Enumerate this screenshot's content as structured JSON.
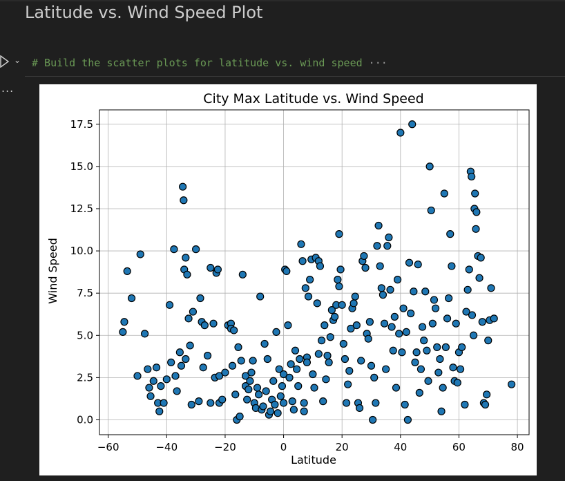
{
  "heading": "Latitude vs. Wind Speed Plot",
  "cell": {
    "code": "# Build the scatter plots for latitude vs. wind speed",
    "collapsed_marker": "···",
    "output_marker": "..."
  },
  "colors": {
    "marker_fill": "#1f77b4",
    "marker_edge": "#000000",
    "grid": "#b0b0b0",
    "code_comment": "#6a9955"
  },
  "chart_data": {
    "type": "scatter",
    "title": "City Max Latitude vs. Wind Speed",
    "xlabel": "Latitude",
    "ylabel": "Wind Speed",
    "xlim": [
      -63,
      84
    ],
    "ylim": [
      -0.88,
      18.35
    ],
    "xticks": [
      -60,
      -40,
      -20,
      0,
      20,
      40,
      60,
      80
    ],
    "xtick_labels": [
      "−60",
      "−40",
      "−20",
      "0",
      "20",
      "40",
      "60",
      "80"
    ],
    "yticks": [
      0.0,
      2.5,
      5.0,
      7.5,
      10.0,
      12.5,
      15.0,
      17.5
    ],
    "ytick_labels": [
      "0.0",
      "2.5",
      "5.0",
      "7.5",
      "10.0",
      "12.5",
      "15.0",
      "17.5"
    ],
    "grid": true,
    "points": [
      [
        -55,
        5.2
      ],
      [
        -54.5,
        5.8
      ],
      [
        -53.5,
        8.8
      ],
      [
        -52,
        7.2
      ],
      [
        -50,
        2.6
      ],
      [
        -49,
        9.8
      ],
      [
        -47.5,
        5.1
      ],
      [
        -46.5,
        3.0
      ],
      [
        -46,
        1.9
      ],
      [
        -45.5,
        1.4
      ],
      [
        -44.5,
        2.3
      ],
      [
        -43.5,
        3.1
      ],
      [
        -43,
        1.0
      ],
      [
        -42.5,
        0.5
      ],
      [
        -42,
        2.0
      ],
      [
        -41,
        1.0
      ],
      [
        -40,
        2.4
      ],
      [
        -39,
        6.8
      ],
      [
        -38.5,
        3.4
      ],
      [
        -37.5,
        10.1
      ],
      [
        -37,
        2.6
      ],
      [
        -36.5,
        1.7
      ],
      [
        -35.5,
        4.0
      ],
      [
        -35,
        3.2
      ],
      [
        -34.5,
        13.8
      ],
      [
        -34.2,
        13.0
      ],
      [
        -34,
        8.9
      ],
      [
        -33.5,
        9.6
      ],
      [
        -33,
        8.6
      ],
      [
        -33.5,
        3.6
      ],
      [
        -32.5,
        6.0
      ],
      [
        -32,
        4.4
      ],
      [
        -31.5,
        0.9
      ],
      [
        -31,
        6.4
      ],
      [
        -30,
        10.1
      ],
      [
        -29,
        1.1
      ],
      [
        -28.5,
        7.2
      ],
      [
        -28,
        5.8
      ],
      [
        -27.5,
        3.1
      ],
      [
        -27,
        5.6
      ],
      [
        -26,
        3.8
      ],
      [
        -25,
        1.0
      ],
      [
        -25,
        9.0
      ],
      [
        -24,
        5.7
      ],
      [
        -23.5,
        2.5
      ],
      [
        -23,
        8.7
      ],
      [
        -22.5,
        8.9
      ],
      [
        -22,
        2.6
      ],
      [
        -22,
        1.0
      ],
      [
        -21,
        1.2
      ],
      [
        -20,
        2.8
      ],
      [
        -19,
        5.6
      ],
      [
        -18,
        5.7
      ],
      [
        -18,
        5.4
      ],
      [
        -17,
        5.3
      ],
      [
        -17.5,
        3.2
      ],
      [
        -16.5,
        1.5
      ],
      [
        -16,
        0.0
      ],
      [
        -15.5,
        4.3
      ],
      [
        -15,
        0.2
      ],
      [
        -14.5,
        3.5
      ],
      [
        -14,
        8.6
      ],
      [
        -13,
        2.6
      ],
      [
        -13,
        2.0
      ],
      [
        -12.5,
        1.2
      ],
      [
        -12,
        1.8
      ],
      [
        -11.5,
        2.3
      ],
      [
        -11,
        2.8
      ],
      [
        -10.5,
        3.5
      ],
      [
        -10,
        1.0
      ],
      [
        -9.5,
        0.7
      ],
      [
        -9,
        1.9
      ],
      [
        -8.5,
        1.5
      ],
      [
        -8,
        7.3
      ],
      [
        -7.5,
        0.6
      ],
      [
        -7,
        0.8
      ],
      [
        -6.5,
        4.5
      ],
      [
        -6,
        1.7
      ],
      [
        -5.5,
        3.6
      ],
      [
        -5,
        0.3
      ],
      [
        -4.5,
        0.5
      ],
      [
        -4,
        1.2
      ],
      [
        -3.5,
        2.3
      ],
      [
        -3,
        0.9
      ],
      [
        -2.5,
        5.2
      ],
      [
        -2,
        0.4
      ],
      [
        -1.5,
        3.0
      ],
      [
        -1,
        1.4
      ],
      [
        -0.5,
        2.0
      ],
      [
        0,
        1.0
      ],
      [
        0,
        2.7
      ],
      [
        0.5,
        8.9
      ],
      [
        1,
        8.8
      ],
      [
        1.5,
        5.6
      ],
      [
        2,
        2.5
      ],
      [
        2.5,
        3.3
      ],
      [
        3,
        1.1
      ],
      [
        3.5,
        0.6
      ],
      [
        4,
        4.1
      ],
      [
        4.5,
        3.0
      ],
      [
        5,
        2.0
      ],
      [
        5.5,
        3.6
      ],
      [
        6,
        10.4
      ],
      [
        6.5,
        9.4
      ],
      [
        7,
        1.0
      ],
      [
        7,
        0.5
      ],
      [
        7.5,
        7.8
      ],
      [
        8,
        3.7
      ],
      [
        8,
        3.4
      ],
      [
        8.5,
        7.3
      ],
      [
        9,
        8.3
      ],
      [
        9.5,
        9.5
      ],
      [
        10,
        2.7
      ],
      [
        10.5,
        1.9
      ],
      [
        11,
        9.6
      ],
      [
        11.5,
        6.9
      ],
      [
        12,
        9.4
      ],
      [
        12.5,
        9.1
      ],
      [
        12,
        3.9
      ],
      [
        13,
        4.7
      ],
      [
        13.5,
        1.1
      ],
      [
        14,
        5.6
      ],
      [
        14.5,
        2.4
      ],
      [
        15,
        3.8
      ],
      [
        15.5,
        3.4
      ],
      [
        16,
        4.9
      ],
      [
        16.5,
        6.5
      ],
      [
        17,
        5.9
      ],
      [
        17.5,
        6.1
      ],
      [
        18,
        6.8
      ],
      [
        18.5,
        8.3
      ],
      [
        19,
        7.9
      ],
      [
        19.5,
        8.9
      ],
      [
        19,
        11.0
      ],
      [
        20,
        6.8
      ],
      [
        20.5,
        4.5
      ],
      [
        21,
        3.6
      ],
      [
        21.5,
        1.0
      ],
      [
        22,
        2.1
      ],
      [
        22.5,
        2.9
      ],
      [
        23,
        5.4
      ],
      [
        23.5,
        6.6
      ],
      [
        24,
        6.9
      ],
      [
        24.5,
        7.3
      ],
      [
        25,
        5.6
      ],
      [
        25.5,
        1.0
      ],
      [
        26,
        0.7
      ],
      [
        26.5,
        3.5
      ],
      [
        27,
        9.4
      ],
      [
        27.5,
        9.7
      ],
      [
        28,
        9.0
      ],
      [
        28.5,
        5.1
      ],
      [
        29,
        4.8
      ],
      [
        29.5,
        5.8
      ],
      [
        30,
        3.2
      ],
      [
        30.5,
        0.0
      ],
      [
        31,
        2.5
      ],
      [
        31.5,
        1.0
      ],
      [
        32,
        10.3
      ],
      [
        32.5,
        11.5
      ],
      [
        33,
        9.1
      ],
      [
        33.5,
        7.8
      ],
      [
        34,
        7.4
      ],
      [
        34.5,
        5.7
      ],
      [
        35,
        3.0
      ],
      [
        35.5,
        10.3
      ],
      [
        36,
        10.8
      ],
      [
        36.5,
        7.7
      ],
      [
        37,
        5.5
      ],
      [
        37.5,
        4.1
      ],
      [
        38,
        6.1
      ],
      [
        38.5,
        1.9
      ],
      [
        39,
        8.3
      ],
      [
        39.5,
        5.1
      ],
      [
        40,
        17.0
      ],
      [
        40.5,
        4.0
      ],
      [
        41,
        6.6
      ],
      [
        41.5,
        0.9
      ],
      [
        42,
        5.2
      ],
      [
        42.5,
        0.0
      ],
      [
        43,
        9.3
      ],
      [
        43.5,
        6.3
      ],
      [
        44,
        17.5
      ],
      [
        44.5,
        7.6
      ],
      [
        45,
        3.4
      ],
      [
        45.5,
        4.0
      ],
      [
        46,
        9.2
      ],
      [
        46.5,
        1.6
      ],
      [
        47,
        3.0
      ],
      [
        47.5,
        5.5
      ],
      [
        48,
        4.7
      ],
      [
        48.5,
        7.6
      ],
      [
        49,
        4.1
      ],
      [
        49.5,
        2.3
      ],
      [
        50,
        15.0
      ],
      [
        50.5,
        12.4
      ],
      [
        51,
        5.7
      ],
      [
        51.5,
        7.1
      ],
      [
        52,
        6.6
      ],
      [
        52.5,
        4.3
      ],
      [
        53,
        2.8
      ],
      [
        53.5,
        3.6
      ],
      [
        54,
        0.5
      ],
      [
        54.5,
        1.9
      ],
      [
        55,
        13.4
      ],
      [
        55.5,
        4.3
      ],
      [
        56,
        6.0
      ],
      [
        56.5,
        7.2
      ],
      [
        57,
        11.0
      ],
      [
        57.5,
        9.1
      ],
      [
        58,
        3.1
      ],
      [
        58.5,
        2.3
      ],
      [
        59,
        5.7
      ],
      [
        59.5,
        2.2
      ],
      [
        60,
        4.0
      ],
      [
        60.5,
        3.0
      ],
      [
        61,
        4.3
      ],
      [
        62,
        0.9
      ],
      [
        62.5,
        6.4
      ],
      [
        63,
        7.7
      ],
      [
        63.5,
        8.9
      ],
      [
        64,
        14.7
      ],
      [
        64.3,
        14.4
      ],
      [
        64.5,
        6.2
      ],
      [
        65,
        5.0
      ],
      [
        65.3,
        12.5
      ],
      [
        65.5,
        13.4
      ],
      [
        65.8,
        11.3
      ],
      [
        66,
        12.3
      ],
      [
        66.5,
        9.7
      ],
      [
        67,
        8.4
      ],
      [
        67.5,
        9.6
      ],
      [
        68,
        5.8
      ],
      [
        68.5,
        1.0
      ],
      [
        69,
        0.9
      ],
      [
        69.5,
        1.5
      ],
      [
        70,
        4.7
      ],
      [
        70.5,
        5.9
      ],
      [
        71,
        7.8
      ],
      [
        72,
        6.0
      ],
      [
        78,
        2.1
      ]
    ]
  }
}
